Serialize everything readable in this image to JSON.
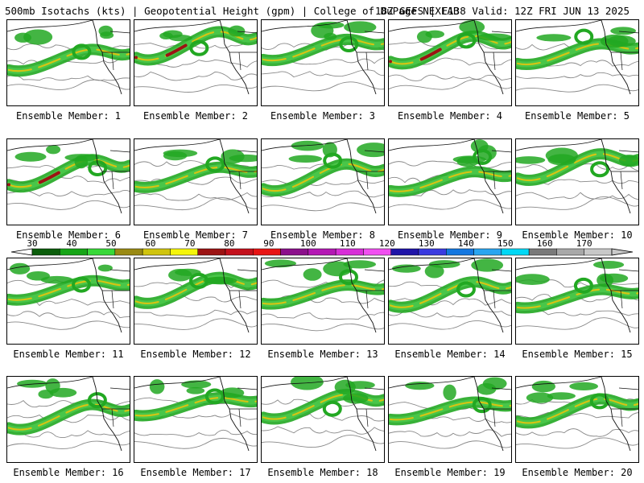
{
  "header": {
    "title": "500mb Isotachs (kts) | Geopotential Height (gpm) | College of DuPage NEXLAB",
    "run_info": "18Z GEFS | F138 Valid: 12Z FRI JUN 13 2025"
  },
  "colorbar": {
    "labels": [
      "30",
      "40",
      "50",
      "60",
      "70",
      "80",
      "90",
      "100",
      "110",
      "120",
      "130",
      "140",
      "150",
      "160",
      "170"
    ],
    "colors": [
      "#0b5e0b",
      "#16a516",
      "#38d838",
      "#9a8a14",
      "#d0c40e",
      "#f5f50a",
      "#9c1313",
      "#c4101c",
      "#e81414",
      "#8b0f8b",
      "#b418b4",
      "#d82ed8",
      "#f04ff0",
      "#1f14a8",
      "#3a3ae0",
      "#1477e0",
      "#2aa5f0",
      "#00d8f5",
      "#7a7a7a",
      "#a8a8a8",
      "#c8c8c8"
    ]
  },
  "panels": [
    {
      "label": "Ensemble Member: 1"
    },
    {
      "label": "Ensemble Member: 2"
    },
    {
      "label": "Ensemble Member: 3"
    },
    {
      "label": "Ensemble Member: 4"
    },
    {
      "label": "Ensemble Member: 5"
    },
    {
      "label": "Ensemble Member: 6"
    },
    {
      "label": "Ensemble Member: 7"
    },
    {
      "label": "Ensemble Member: 8"
    },
    {
      "label": "Ensemble Member: 9"
    },
    {
      "label": "Ensemble Member: 10"
    },
    {
      "label": "Ensemble Member: 11"
    },
    {
      "label": "Ensemble Member: 12"
    },
    {
      "label": "Ensemble Member: 13"
    },
    {
      "label": "Ensemble Member: 14"
    },
    {
      "label": "Ensemble Member: 15"
    },
    {
      "label": "Ensemble Member: 16"
    },
    {
      "label": "Ensemble Member: 17"
    },
    {
      "label": "Ensemble Member: 18"
    },
    {
      "label": "Ensemble Member: 19"
    },
    {
      "label": "Ensemble Member: 20"
    }
  ],
  "style": {
    "jet_green": "#22a822",
    "jet_light": "#49c649",
    "jet_yellow": "#d4c414",
    "jet_olive": "#9a8a14",
    "jet_red": "#9c1313",
    "contour": "#888888",
    "coast": "#111111"
  }
}
